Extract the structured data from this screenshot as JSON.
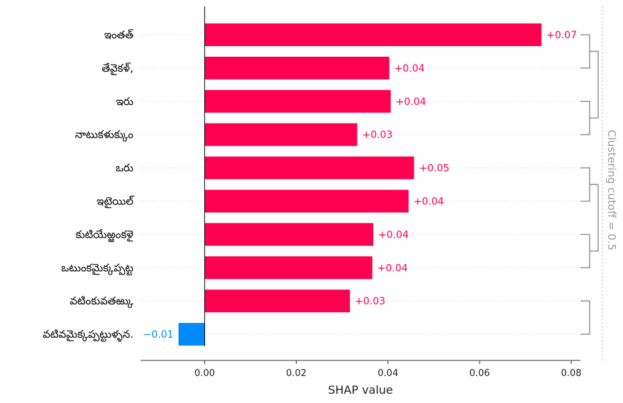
{
  "chart_data": {
    "type": "bar",
    "orientation": "horizontal",
    "categories": [
      "ఇంతత్",
      "తేవైకళ్,",
      "ఇరు",
      "నాటుకళుక్కుం",
      "ఒరు",
      "ఇటైయిల్",
      "కుటియేఱ్ఱంకళై",
      "ఒటుంకమైక్కప్పట్ట",
      "వటింకువతఱ్కు",
      "వటివమైక్కప్పట్టుళ్ళన."
    ],
    "values": [
      0.0735,
      0.0403,
      0.0406,
      0.0333,
      0.0457,
      0.0445,
      0.0368,
      0.0366,
      0.0317,
      -0.0057
    ],
    "value_labels": [
      "+0.07",
      "+0.04",
      "+0.04",
      "+0.03",
      "+0.05",
      "+0.04",
      "+0.04",
      "+0.04",
      "+0.03",
      "−0.01"
    ],
    "xlabel": "SHAP value",
    "xlim": [
      -0.014,
      0.082
    ],
    "xticks": [
      0.0,
      0.02,
      0.04,
      0.06,
      0.08
    ],
    "xtick_labels": [
      "0.00",
      "0.02",
      "0.04",
      "0.06",
      "0.08"
    ],
    "colors": {
      "positive": "#ff0051",
      "negative": "#008bfb",
      "cluster": "#999999"
    },
    "clustering_label": "Clustering cutoff = 0.5",
    "clustering": {
      "pairs": [
        [
          0,
          1
        ],
        [
          2,
          3
        ],
        [
          4,
          5
        ],
        [
          6,
          7
        ],
        [
          8,
          9
        ]
      ],
      "groups": [
        [
          0,
          1
        ],
        [
          2,
          3
        ]
      ]
    }
  }
}
